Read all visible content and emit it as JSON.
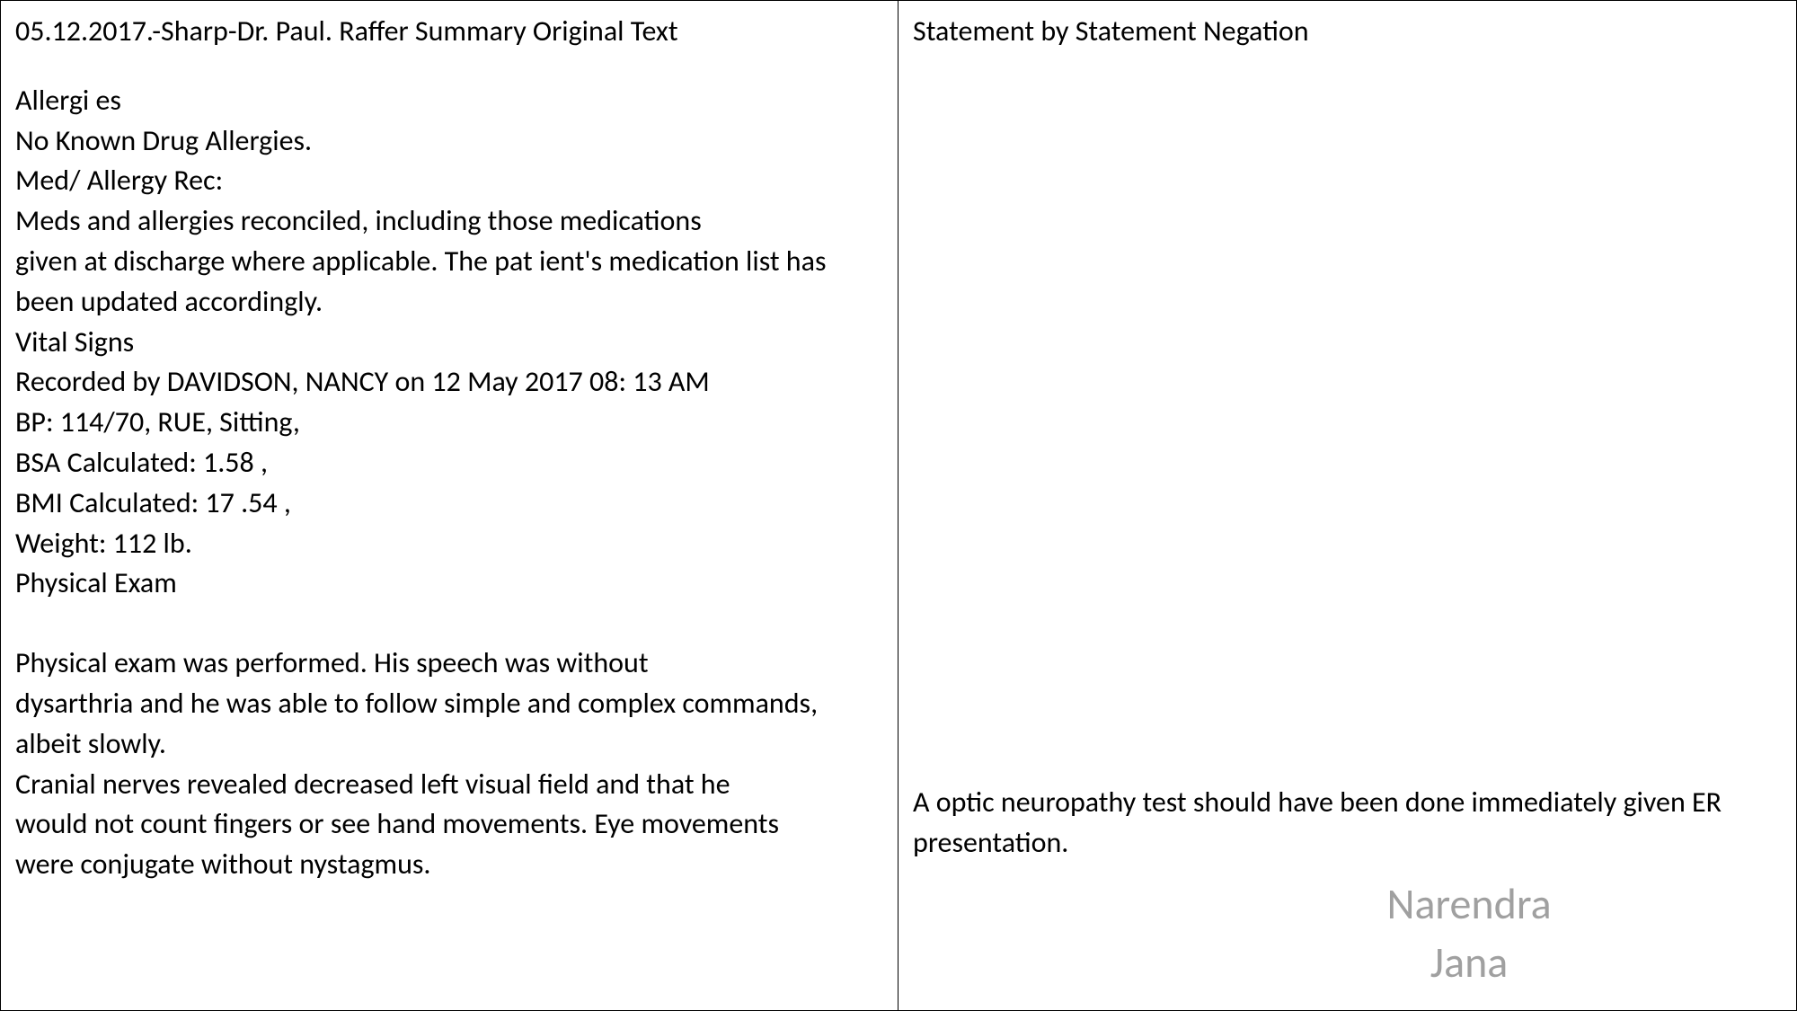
{
  "left": {
    "header": "05.12.2017.-Sharp-Dr. Paul. Raffer Summary Original Text",
    "lines": [
      "Allergi es",
      "No Known Drug Allergies.",
      "Med/ Allergy Rec:",
      "Meds and allergies reconciled, including those medications",
      "given at discharge where applicable. The pat ient's medication list has",
      "been updated accordingly.",
      "Vital Signs",
      "Recorded by DAVIDSON, NANCY on 12 May 2017 08: 13 AM",
      "BP: 114/70, RUE, Sitting,",
      "BSA Calculated: 1.58 ,",
      "BMI Calculated: 17 .54 ,",
      "Weight: 112 lb.",
      "Physical Exam"
    ],
    "lines2": [
      "Physical exam was performed. His speech was without",
      "dysarthria and he was able to follow simple and complex commands,",
      "albeit slowly.",
      "Cranial nerves revealed decreased left visual field and that he",
      "would not count fingers or see hand movements. Eye movements",
      "were conjugate without nystagmus."
    ]
  },
  "right": {
    "header": "Statement by Statement Negation",
    "comment": "A optic neuropathy test should have been done immediately given ER presentation.",
    "watermark_line1": "Narendra",
    "watermark_line2": "Jana"
  },
  "colors": {
    "text": "#000000",
    "border": "#000000",
    "background": "#ffffff",
    "watermark": "#a0a0a0"
  },
  "typography": {
    "body_fontsize": 32,
    "watermark_fontsize": 48
  }
}
